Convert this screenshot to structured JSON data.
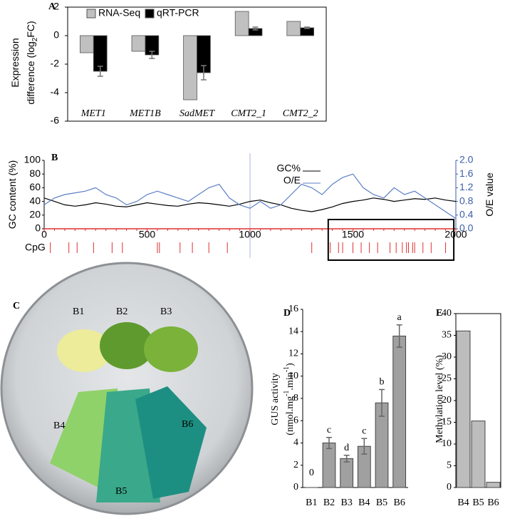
{
  "chart_data": [
    {
      "type": "grouped_bar",
      "title": "A",
      "y_label": [
        "Expression",
        "difference (log",
        "2",
        "FC)"
      ],
      "categories": [
        "MET1",
        "MET1B",
        "SadMET",
        "CMT2_1",
        "CMT2_2"
      ],
      "series": [
        {
          "name": "RNA-Seq",
          "color": "#c0c0c0",
          "values": [
            -1.2,
            -1.1,
            -4.5,
            1.7,
            1.0
          ]
        },
        {
          "name": "qRT-PCR",
          "color": "#000000",
          "values": [
            -2.5,
            -1.35,
            -2.6,
            0.5,
            0.55
          ],
          "errors": [
            0.35,
            0.25,
            0.5,
            0.1,
            0.05
          ]
        }
      ],
      "ylim": [
        -6,
        2
      ],
      "yticks": [
        -6,
        -4,
        -2,
        0,
        2
      ]
    },
    {
      "type": "line",
      "title": "B",
      "y_label": "GC content (%)",
      "y2_label": "O/E value",
      "cpg_label": "CpG",
      "x": [
        0,
        50,
        100,
        150,
        200,
        250,
        300,
        350,
        400,
        450,
        500,
        550,
        600,
        650,
        700,
        750,
        800,
        850,
        900,
        950,
        1000,
        1050,
        1100,
        1150,
        1200,
        1250,
        1300,
        1350,
        1400,
        1450,
        1500,
        1550,
        1600,
        1650,
        1700,
        1750,
        1800,
        1850,
        1900,
        1950,
        2000
      ],
      "series": [
        {
          "name": "GC%",
          "color": "#000000",
          "values": [
            45,
            40,
            35,
            33,
            35,
            38,
            36,
            33,
            32,
            35,
            38,
            36,
            34,
            33,
            36,
            38,
            37,
            35,
            33,
            36,
            40,
            42,
            38,
            35,
            30,
            27,
            25,
            28,
            32,
            37,
            40,
            42,
            45,
            43,
            40,
            42,
            44,
            43,
            45,
            42,
            40
          ]
        },
        {
          "name": "O/E",
          "color": "#5b7fc4",
          "axis": "y2",
          "values": [
            0.7,
            0.9,
            1.0,
            1.05,
            1.1,
            1.2,
            1.0,
            0.9,
            0.7,
            0.8,
            1.0,
            1.1,
            1.0,
            0.9,
            0.8,
            1.0,
            1.2,
            1.3,
            0.9,
            0.7,
            0.6,
            0.8,
            0.6,
            0.7,
            1.0,
            1.3,
            1.2,
            1.0,
            1.3,
            1.5,
            1.6,
            1.2,
            1.0,
            0.9,
            1.2,
            1.0,
            1.1,
            0.9,
            0.7,
            0.5,
            0.3
          ]
        }
      ],
      "cpg_sites": [
        30,
        120,
        160,
        240,
        330,
        380,
        550,
        560,
        660,
        720,
        800,
        890,
        1300,
        1390,
        1430,
        1450,
        1500,
        1540,
        1580,
        1620,
        1680,
        1710,
        1740,
        1760,
        1770,
        1790,
        1800,
        1840,
        1880,
        1950
      ],
      "highlight": [
        1380,
        1990
      ],
      "xlim": [
        0,
        2000
      ],
      "xticks": [
        0,
        500,
        1000,
        1500,
        2000
      ],
      "ylim": [
        0,
        100
      ],
      "yticks": [
        0,
        20,
        40,
        60,
        80,
        100
      ],
      "y2lim": [
        0,
        2
      ],
      "y2ticks": [
        {
          "value": 0,
          "label": "0.0"
        },
        0.4,
        0.8,
        1.2,
        1.6,
        {
          "value": 2,
          "label": "2.0"
        }
      ]
    },
    {
      "type": "bar",
      "title": "D",
      "y_label": [
        "GUS activity",
        "(nmol.mg",
        "-1",
        ".min",
        "-1",
        ")"
      ],
      "categories": [
        "B1",
        "B2",
        "B3",
        "B4",
        "B5",
        "B6"
      ],
      "values": [
        0,
        4.0,
        2.6,
        3.7,
        7.6,
        13.6
      ],
      "errors": [
        0,
        0.5,
        0.3,
        0.7,
        1.2,
        1.0
      ],
      "value_labels": [
        "0",
        null,
        null,
        null,
        null,
        null
      ],
      "significance": [
        null,
        "c",
        "d",
        "c",
        "b",
        "a"
      ],
      "color": "#a0a0a0",
      "ylim": [
        0,
        16
      ],
      "yticks": [
        0,
        2,
        4,
        6,
        8,
        10,
        12,
        14,
        16
      ]
    },
    {
      "type": "bar",
      "title": "E",
      "y_label": "Methylation level (%)",
      "categories": [
        "B4",
        "B5",
        "B6"
      ],
      "values": [
        36,
        15.3,
        1.2
      ],
      "color": "#bdbdbd",
      "ylim": [
        0,
        40
      ],
      "yticks": [
        0,
        5,
        10,
        15,
        20,
        25,
        30,
        35,
        40
      ]
    }
  ],
  "photo": {
    "title": "C",
    "labels": [
      "B1",
      "B2",
      "B3",
      "B4",
      "B5",
      "B6"
    ]
  }
}
